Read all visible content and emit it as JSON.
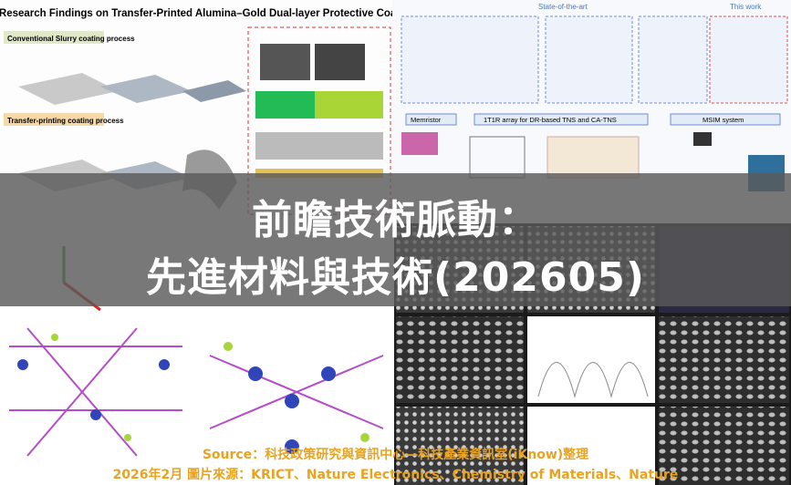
{
  "banner": {
    "title_lines": [
      "前瞻技術脈動：",
      "先進材料與技術(202605)"
    ],
    "source_lines": [
      "Source：科技政策研究與資訊中心—科技產業資訊室(iKnow)整理",
      "2026年2月  圖片來源：KRICT、Nature Electronics、Chemistry of Materials、Nature"
    ]
  },
  "collage": {
    "coating_figure": {
      "title": "Key Research Findings on Transfer-Printed Alumina–Gold Dual-layer Protective Coating",
      "section_labels": [
        "Conventional Slurry coating process",
        "Transfer-printing coating process"
      ]
    },
    "computing_figure": {
      "header_labels": [
        "State-of-the-art",
        "This work"
      ],
      "row_labels": [
        "Memristor",
        "1T1R array for DR-based TNS and CA-TNS",
        "MSIM system"
      ]
    }
  }
}
